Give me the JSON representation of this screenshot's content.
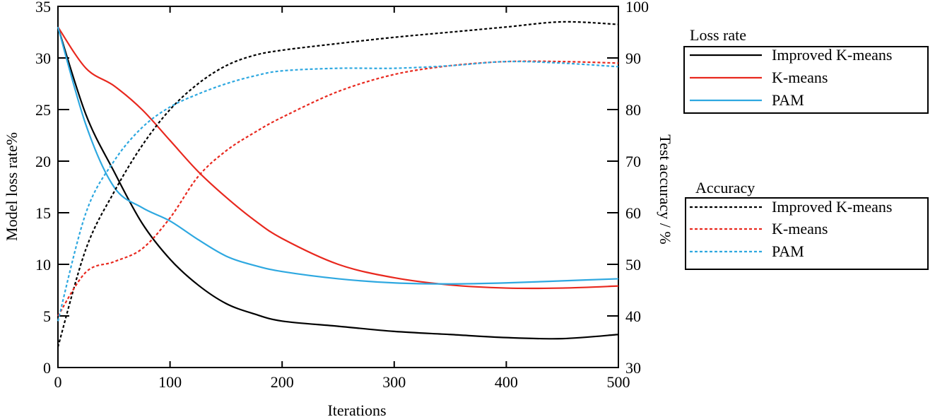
{
  "chart_data": {
    "type": "line",
    "title": "",
    "xlabel": "Iterations",
    "ylabel": "Model loss rate%",
    "ylabel_right": "Test accuracy / %",
    "xlim": [
      0,
      500
    ],
    "ylim": [
      0,
      35
    ],
    "ylim_right": [
      30,
      100
    ],
    "x_ticks": [
      0,
      100,
      200,
      300,
      400,
      500
    ],
    "y_ticks": [
      0,
      5,
      10,
      15,
      20,
      25,
      30,
      35
    ],
    "y_ticks_right": [
      30,
      40,
      50,
      60,
      70,
      80,
      90,
      100
    ],
    "grid": false,
    "legend_position": "right, outside plot",
    "x": [
      0,
      25,
      50,
      75,
      100,
      125,
      150,
      175,
      200,
      250,
      300,
      350,
      400,
      450,
      500
    ],
    "series": [
      {
        "name": "Improved K-means",
        "group": "Loss rate",
        "axis": "left",
        "style": "solid",
        "color": "#000000",
        "values": [
          33,
          24.5,
          19,
          14,
          10.5,
          8,
          6.2,
          5.2,
          4.5,
          4,
          3.5,
          3.2,
          2.9,
          2.8,
          3.2
        ]
      },
      {
        "name": "K-means",
        "group": "Loss rate",
        "axis": "left",
        "style": "solid",
        "color": "#e8281e",
        "values": [
          33,
          29,
          27.3,
          25,
          22,
          19,
          16.5,
          14.3,
          12.5,
          10,
          8.7,
          8,
          7.7,
          7.7,
          7.9
        ]
      },
      {
        "name": "PAM",
        "group": "Loss rate",
        "axis": "left",
        "style": "solid",
        "color": "#2ea8e0",
        "values": [
          33,
          23.5,
          17.5,
          15.5,
          14.2,
          12.4,
          10.8,
          9.9,
          9.3,
          8.6,
          8.2,
          8.1,
          8.2,
          8.4,
          8.6
        ]
      },
      {
        "name": "Improved K-means",
        "group": "Accuracy",
        "axis": "right",
        "style": "dashed",
        "color": "#000000",
        "values": [
          34,
          53,
          64,
          73,
          80,
          85,
          88.5,
          90.5,
          91.5,
          92.8,
          94,
          95,
          96,
          97,
          96.5
        ]
      },
      {
        "name": "K-means",
        "group": "Accuracy",
        "axis": "right",
        "style": "dashed",
        "color": "#e8281e",
        "values": [
          40,
          48.5,
          50.5,
          53,
          59,
          67,
          72,
          75.5,
          78.5,
          83.5,
          86.8,
          88.5,
          89.3,
          89.3,
          89
        ]
      },
      {
        "name": "PAM",
        "group": "Accuracy",
        "axis": "right",
        "style": "dashed",
        "color": "#2ea8e0",
        "values": [
          39,
          60,
          70,
          76.5,
          80.5,
          83,
          85,
          86.5,
          87.5,
          88,
          88,
          88.5,
          89.3,
          89,
          88.3
        ]
      }
    ]
  },
  "legends": [
    {
      "title": "Loss rate",
      "entries": [
        {
          "label": "Improved K-means",
          "color": "#000000",
          "style": "solid"
        },
        {
          "label": "K-means",
          "color": "#e8281e",
          "style": "solid"
        },
        {
          "label": "PAM",
          "color": "#2ea8e0",
          "style": "solid"
        }
      ]
    },
    {
      "title": "Accuracy",
      "entries": [
        {
          "label": "Improved K-means",
          "color": "#000000",
          "style": "dashed"
        },
        {
          "label": "K-means",
          "color": "#e8281e",
          "style": "dashed"
        },
        {
          "label": "PAM",
          "color": "#2ea8e0",
          "style": "dashed"
        }
      ]
    }
  ]
}
